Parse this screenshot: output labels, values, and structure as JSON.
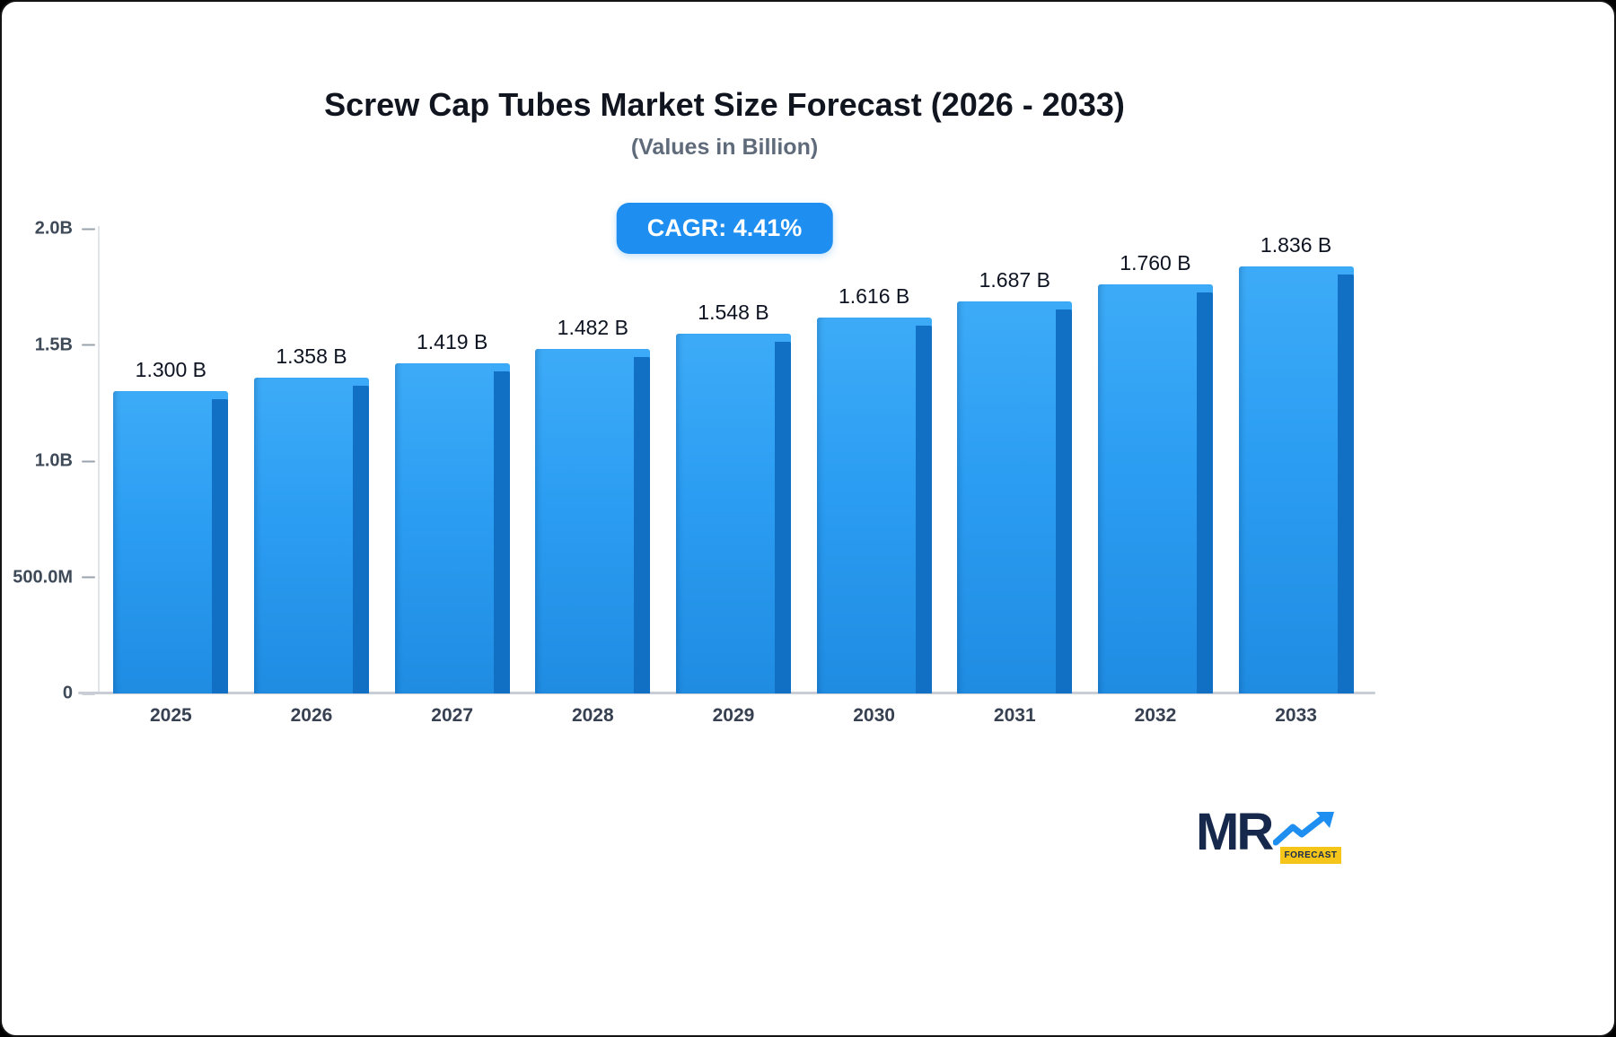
{
  "title": "Screw Cap Tubes Market Size Forecast (2026 - 2033)",
  "subtitle": "(Values in Billion)",
  "cagr_badge": "CAGR: 4.41%",
  "chart_data": {
    "type": "bar",
    "categories": [
      "2025",
      "2026",
      "2027",
      "2028",
      "2029",
      "2030",
      "2031",
      "2032",
      "2033"
    ],
    "values": [
      1.3,
      1.358,
      1.419,
      1.482,
      1.548,
      1.616,
      1.687,
      1.76,
      1.836
    ],
    "value_labels": [
      "1.300 B",
      "1.358 B",
      "1.419 B",
      "1.482 B",
      "1.548 B",
      "1.616 B",
      "1.687 B",
      "1.760 B",
      "1.836 B"
    ],
    "title": "Screw Cap Tubes Market Size Forecast (2026 - 2033)",
    "xlabel": "",
    "ylabel": "",
    "ylim": [
      0,
      2.0
    ],
    "grid": false,
    "legend": false,
    "y_ticks": [
      {
        "label": "2.0B",
        "value": 2.0
      },
      {
        "label": "1.5B",
        "value": 1.5
      },
      {
        "label": "1.0B",
        "value": 1.0
      },
      {
        "label": "500.0M",
        "value": 0.5
      },
      {
        "label": "0",
        "value": 0
      }
    ]
  },
  "colors": {
    "bar_front": "#2b9df2",
    "bar_side": "#1270c4",
    "badge_bg": "#1e8ef0",
    "title_text": "#10151f",
    "subtitle_text": "#5f6b7a",
    "axis_text": "#3f4a58",
    "logo_navy": "#16294d",
    "logo_yellow": "#f5c51a",
    "logo_arrow_blue": "#1e8ef0"
  },
  "logo": {
    "mr": "MR",
    "forecast": "FORECAST"
  }
}
